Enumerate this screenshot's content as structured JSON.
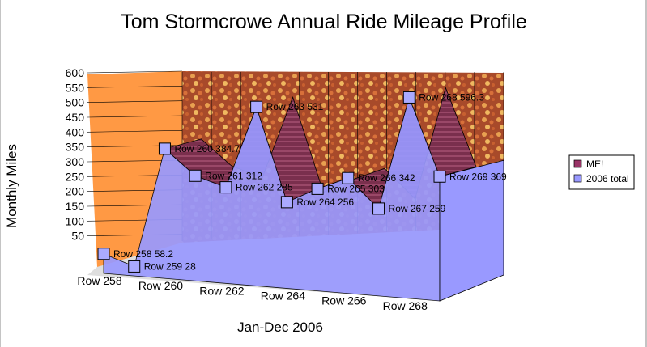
{
  "chart_data": {
    "type": "area",
    "title": "Tom Stormcrowe Annual Ride Mileage Profile",
    "xlabel": "Jan-Dec 2006",
    "ylabel": "Monthly Miles",
    "ylim": [
      0,
      600
    ],
    "y_ticks": [
      "600",
      "550",
      "500",
      "450",
      "400",
      "350",
      "300",
      "250",
      "200",
      "150",
      "100",
      "50"
    ],
    "categories": [
      "Row 258",
      "Row 259",
      "Row 260",
      "Row 261",
      "Row 262",
      "Row 263",
      "Row 264",
      "Row 265",
      "Row 266",
      "Row 267",
      "Row 268",
      "Row 269"
    ],
    "category_labels_shown": [
      "Row 258",
      "Row 260",
      "Row 262",
      "Row 264",
      "Row 266",
      "Row 268"
    ],
    "series": [
      {
        "name": "ME!",
        "color": "#993366"
      },
      {
        "name": "2006 total",
        "color": "#9999ff",
        "values": [
          58.2,
          28,
          384.7,
          312,
          285,
          531,
          256,
          303,
          342,
          259,
          596.3,
          369
        ]
      }
    ],
    "data_labels": [
      "Row 258 58.2",
      "Row 259 28",
      "Row 260 384.7",
      "Row 261 312",
      "Row 262 285",
      "Row 263 531",
      "Row 264 256",
      "Row 265 303",
      "Row 266 342",
      "Row 267 259",
      "Row 268 596.3",
      "Row 269 369"
    ],
    "legend_position": "right",
    "grid": true,
    "walls": {
      "left_color": "#ff9944",
      "back": "textured brick"
    }
  }
}
